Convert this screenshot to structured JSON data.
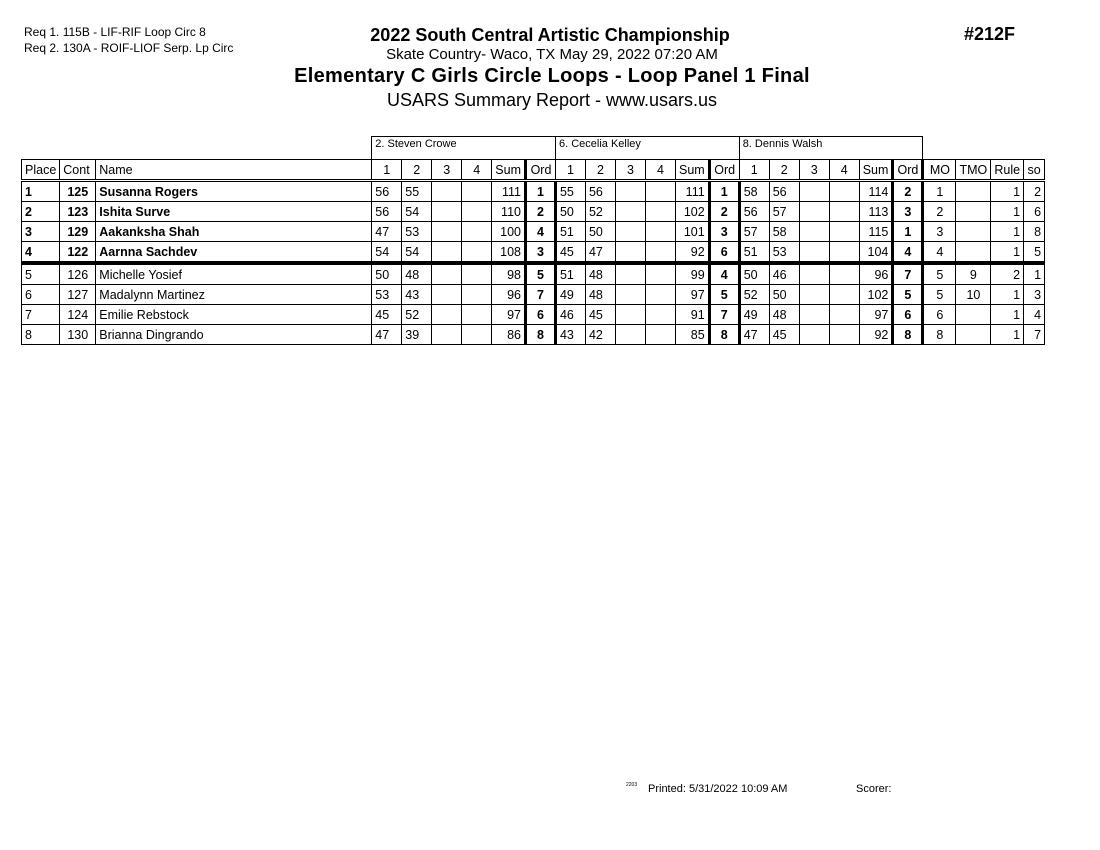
{
  "requirements": [
    "Req  1.  115B - LIF-RIF Loop Circ 8",
    "Req  2.  130A - ROIF-LIOF Serp. Lp Circ"
  ],
  "title": "2022 South Central Artistic Championship",
  "subtitle": "Skate Country- Waco, TX  May 29, 2022  07:20 AM",
  "event": "Elementary C Girls Circle Loops - Loop Panel 1 Final",
  "report": "USARS Summary Report - www.usars.us",
  "event_number": "#212F",
  "judges": [
    "2.  Steven Crowe",
    "6.  Cecelia Kelley",
    "8.  Dennis Walsh"
  ],
  "headers": {
    "place": "Place",
    "cont": "Cont",
    "name": "Name",
    "marks": [
      "1",
      "2",
      "3",
      "4",
      "Sum",
      "Ord"
    ],
    "mo": "MO",
    "tmo": "TMO",
    "rule": "Rule",
    "so": "so"
  },
  "rows": [
    {
      "place": "1",
      "cont": "125",
      "name": "Susanna Rogers",
      "j": [
        [
          "56",
          "55",
          "",
          "",
          "111",
          "1"
        ],
        [
          "55",
          "56",
          "",
          "",
          "111",
          "1"
        ],
        [
          "58",
          "56",
          "",
          "",
          "114",
          "2"
        ]
      ],
      "mo": "1",
      "tmo": "",
      "rule": "1",
      "so": "2"
    },
    {
      "place": "2",
      "cont": "123",
      "name": "Ishita Surve",
      "j": [
        [
          "56",
          "54",
          "",
          "",
          "110",
          "2"
        ],
        [
          "50",
          "52",
          "",
          "",
          "102",
          "2"
        ],
        [
          "56",
          "57",
          "",
          "",
          "113",
          "3"
        ]
      ],
      "mo": "2",
      "tmo": "",
      "rule": "1",
      "so": "6"
    },
    {
      "place": "3",
      "cont": "129",
      "name": "Aakanksha Shah",
      "j": [
        [
          "47",
          "53",
          "",
          "",
          "100",
          "4"
        ],
        [
          "51",
          "50",
          "",
          "",
          "101",
          "3"
        ],
        [
          "57",
          "58",
          "",
          "",
          "115",
          "1"
        ]
      ],
      "mo": "3",
      "tmo": "",
      "rule": "1",
      "so": "8"
    },
    {
      "place": "4",
      "cont": "122",
      "name": "Aarnna Sachdev",
      "j": [
        [
          "54",
          "54",
          "",
          "",
          "108",
          "3"
        ],
        [
          "45",
          "47",
          "",
          "",
          "92",
          "6"
        ],
        [
          "51",
          "53",
          "",
          "",
          "104",
          "4"
        ]
      ],
      "mo": "4",
      "tmo": "",
      "rule": "1",
      "so": "5"
    },
    {
      "place": "5",
      "cont": "126",
      "name": "Michelle Yosief",
      "j": [
        [
          "50",
          "48",
          "",
          "",
          "98",
          "5"
        ],
        [
          "51",
          "48",
          "",
          "",
          "99",
          "4"
        ],
        [
          "50",
          "46",
          "",
          "",
          "96",
          "7"
        ]
      ],
      "mo": "5",
      "tmo": "9",
      "rule": "2",
      "so": "1"
    },
    {
      "place": "6",
      "cont": "127",
      "name": "Madalynn Martinez",
      "j": [
        [
          "53",
          "43",
          "",
          "",
          "96",
          "7"
        ],
        [
          "49",
          "48",
          "",
          "",
          "97",
          "5"
        ],
        [
          "52",
          "50",
          "",
          "",
          "102",
          "5"
        ]
      ],
      "mo": "5",
      "tmo": "10",
      "rule": "1",
      "so": "3"
    },
    {
      "place": "7",
      "cont": "124",
      "name": "Emilie Rebstock",
      "j": [
        [
          "45",
          "52",
          "",
          "",
          "97",
          "6"
        ],
        [
          "46",
          "45",
          "",
          "",
          "91",
          "7"
        ],
        [
          "49",
          "48",
          "",
          "",
          "97",
          "6"
        ]
      ],
      "mo": "6",
      "tmo": "",
      "rule": "1",
      "so": "4"
    },
    {
      "place": "8",
      "cont": "130",
      "name": "Brianna Dingrando",
      "j": [
        [
          "47",
          "39",
          "",
          "",
          "86",
          "8"
        ],
        [
          "43",
          "42",
          "",
          "",
          "85",
          "8"
        ],
        [
          "47",
          "45",
          "",
          "",
          "92",
          "8"
        ]
      ],
      "mo": "8",
      "tmo": "",
      "rule": "1",
      "so": "7"
    }
  ],
  "footer": {
    "code": "2203",
    "printed": "Printed:  5/31/2022  10:09 AM",
    "scorer": "Scorer:"
  }
}
